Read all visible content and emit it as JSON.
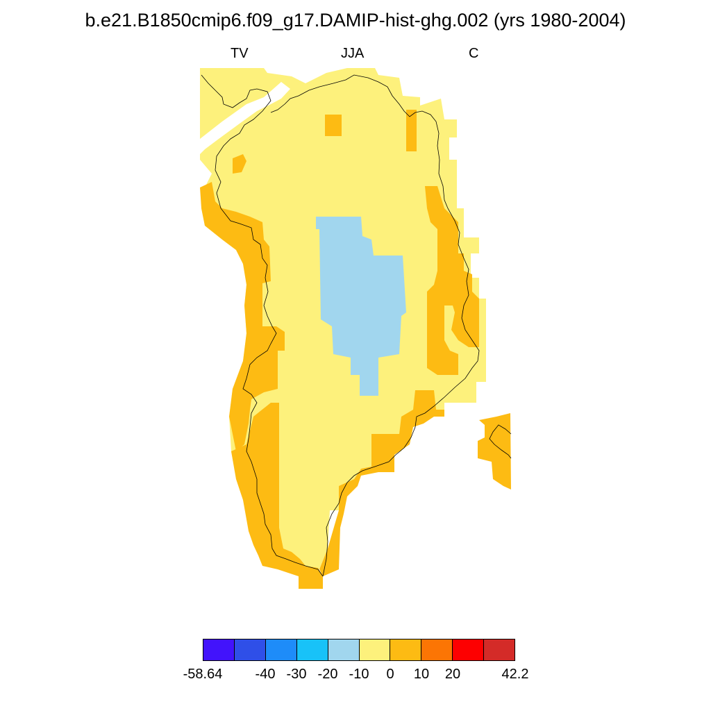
{
  "title": "b.e21.B1850cmip6.f09_g17.DAMIP-hist-ghg.002 (yrs 1980-2004)",
  "subtitle_left": "TV",
  "subtitle_center": "JJA",
  "subtitle_right": "C",
  "colors": {
    "light_yellow": "#fdf17c",
    "orange_yellow": "#fdbb13",
    "light_blue": "#a1d6ee",
    "coastline": "#000000"
  },
  "colorbar": {
    "colors": [
      "#4213fc",
      "#2f4fe8",
      "#1e8cf9",
      "#18c2f8",
      "#a1d6ee",
      "#fdf17c",
      "#fdbb13",
      "#fc7504",
      "#fd0001",
      "#d42b28"
    ],
    "tick_labels": [
      "-58.64",
      "-40",
      "-30",
      "-20",
      "-10",
      "0",
      "10",
      "20",
      "42.2"
    ]
  }
}
